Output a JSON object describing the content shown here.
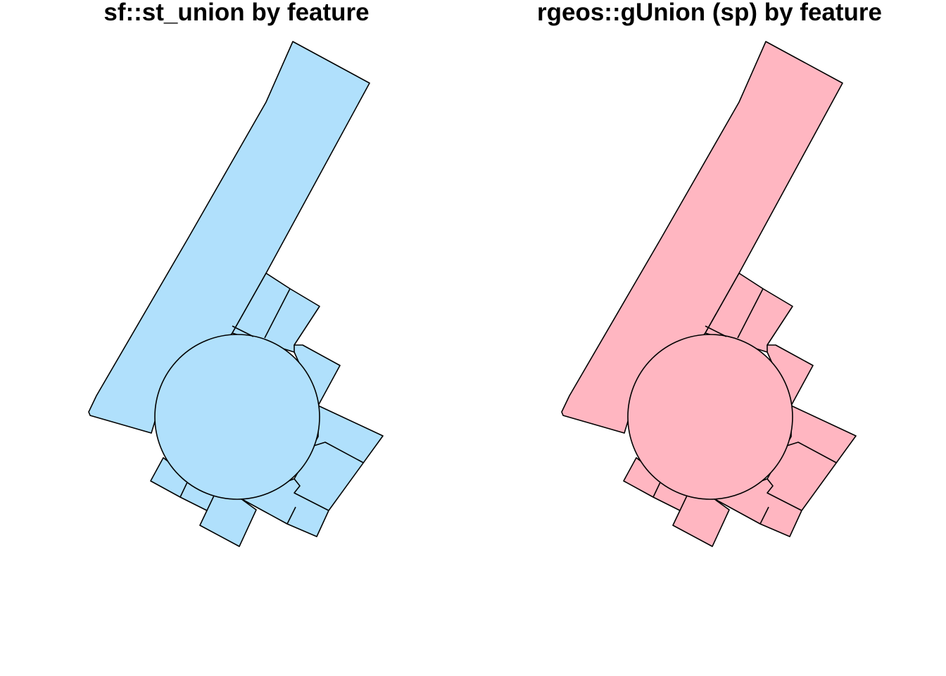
{
  "figure": {
    "panels": [
      {
        "title": "sf::st_union by feature",
        "fill_color": "#B0E0FC",
        "stroke_color": "#000000"
      },
      {
        "title": "rgeos::gUnion (sp) by feature",
        "fill_color": "#FFB6C1",
        "stroke_color": "#000000"
      }
    ]
  }
}
